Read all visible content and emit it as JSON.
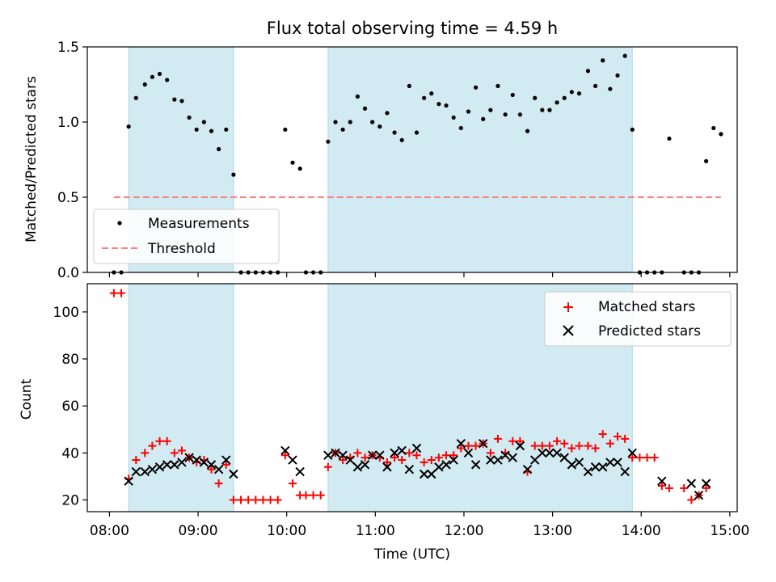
{
  "chart_data": [
    {
      "type": "scatter",
      "title": "Flux total observing time = 4.59 h",
      "xlabel": "",
      "ylabel": "Matched/Predicted stars",
      "xlim": [
        "07:45",
        "15:05"
      ],
      "ylim": [
        0,
        1.5
      ],
      "yticks": [
        "0.0",
        "0.5",
        "1.0",
        "1.5"
      ],
      "shaded_intervals": [
        [
          "08:13",
          "09:24"
        ],
        [
          "10:28",
          "13:54"
        ]
      ],
      "shade_color": "#add8e6",
      "legend_position": "lower-left",
      "series": [
        {
          "name": "Measurements",
          "marker": "dot",
          "color": "#000000",
          "points": [
            [
              "08:03",
              0
            ],
            [
              "08:08",
              0
            ],
            [
              "08:13",
              0.97
            ],
            [
              "08:18",
              1.16
            ],
            [
              "08:24",
              1.25
            ],
            [
              "08:29",
              1.3
            ],
            [
              "08:34",
              1.32
            ],
            [
              "08:39",
              1.28
            ],
            [
              "08:44",
              1.15
            ],
            [
              "08:49",
              1.14
            ],
            [
              "08:54",
              1.03
            ],
            [
              "08:59",
              0.95
            ],
            [
              "09:04",
              1.0
            ],
            [
              "09:09",
              0.94
            ],
            [
              "09:14",
              0.82
            ],
            [
              "09:19",
              0.95
            ],
            [
              "09:24",
              0.65
            ],
            [
              "09:29",
              0
            ],
            [
              "09:34",
              0
            ],
            [
              "09:39",
              0
            ],
            [
              "09:44",
              0
            ],
            [
              "09:49",
              0
            ],
            [
              "09:54",
              0
            ],
            [
              "09:59",
              0.95
            ],
            [
              "10:04",
              0.73
            ],
            [
              "10:09",
              0.69
            ],
            [
              "10:13",
              0
            ],
            [
              "10:18",
              0
            ],
            [
              "10:23",
              0
            ],
            [
              "10:28",
              0.87
            ],
            [
              "10:33",
              1.0
            ],
            [
              "10:38",
              0.95
            ],
            [
              "10:43",
              1.0
            ],
            [
              "10:48",
              1.17
            ],
            [
              "10:53",
              1.09
            ],
            [
              "10:58",
              1.0
            ],
            [
              "11:03",
              0.97
            ],
            [
              "11:08",
              1.06
            ],
            [
              "11:13",
              0.93
            ],
            [
              "11:18",
              0.88
            ],
            [
              "11:23",
              1.24
            ],
            [
              "11:28",
              0.93
            ],
            [
              "11:33",
              1.16
            ],
            [
              "11:38",
              1.19
            ],
            [
              "11:43",
              1.12
            ],
            [
              "11:48",
              1.11
            ],
            [
              "11:53",
              1.03
            ],
            [
              "11:58",
              0.96
            ],
            [
              "12:03",
              1.07
            ],
            [
              "12:08",
              1.23
            ],
            [
              "12:13",
              1.02
            ],
            [
              "12:18",
              1.08
            ],
            [
              "12:23",
              1.24
            ],
            [
              "12:28",
              1.05
            ],
            [
              "12:33",
              1.18
            ],
            [
              "12:38",
              1.05
            ],
            [
              "12:43",
              0.94
            ],
            [
              "12:48",
              1.16
            ],
            [
              "12:53",
              1.08
            ],
            [
              "12:58",
              1.08
            ],
            [
              "13:03",
              1.13
            ],
            [
              "13:08",
              1.16
            ],
            [
              "13:13",
              1.2
            ],
            [
              "13:18",
              1.19
            ],
            [
              "13:24",
              1.34
            ],
            [
              "13:29",
              1.24
            ],
            [
              "13:34",
              1.41
            ],
            [
              "13:39",
              1.22
            ],
            [
              "13:44",
              1.31
            ],
            [
              "13:49",
              1.44
            ],
            [
              "13:54",
              0.95
            ],
            [
              "13:59",
              0
            ],
            [
              "14:04",
              0
            ],
            [
              "14:09",
              0
            ],
            [
              "14:14",
              0
            ],
            [
              "14:19",
              0.89
            ],
            [
              "14:29",
              0
            ],
            [
              "14:34",
              0
            ],
            [
              "14:39",
              0
            ],
            [
              "14:44",
              0.74
            ],
            [
              "14:49",
              0.96
            ],
            [
              "14:54",
              0.92
            ]
          ]
        },
        {
          "name": "Threshold",
          "line": "dashed",
          "color": "#ff7f7f",
          "points": [
            [
              "08:03",
              0.5
            ],
            [
              "14:54",
              0.5
            ]
          ]
        }
      ]
    },
    {
      "type": "scatter",
      "title": "",
      "xlabel": "Time (UTC)",
      "ylabel": "Count",
      "xlim": [
        "07:45",
        "15:05"
      ],
      "ylim": [
        15,
        112
      ],
      "xticks": [
        "08:00",
        "09:00",
        "10:00",
        "11:00",
        "12:00",
        "13:00",
        "14:00",
        "15:00"
      ],
      "yticks": [
        "20",
        "40",
        "60",
        "80",
        "100"
      ],
      "shaded_intervals": [
        [
          "08:13",
          "09:24"
        ],
        [
          "10:28",
          "13:54"
        ]
      ],
      "shade_color": "#add8e6",
      "legend_position": "upper-right",
      "series": [
        {
          "name": "Matched stars",
          "marker": "plus",
          "color": "#ff0000",
          "points": [
            [
              "08:03",
              108
            ],
            [
              "08:08",
              108
            ],
            [
              "08:13",
              29
            ],
            [
              "08:18",
              37
            ],
            [
              "08:24",
              40
            ],
            [
              "08:29",
              43
            ],
            [
              "08:34",
              45
            ],
            [
              "08:39",
              45
            ],
            [
              "08:44",
              40
            ],
            [
              "08:49",
              41
            ],
            [
              "08:54",
              38
            ],
            [
              "08:59",
              36
            ],
            [
              "09:04",
              37
            ],
            [
              "09:09",
              33
            ],
            [
              "09:14",
              27
            ],
            [
              "09:19",
              35
            ],
            [
              "09:24",
              20
            ],
            [
              "09:29",
              20
            ],
            [
              "09:34",
              20
            ],
            [
              "09:39",
              20
            ],
            [
              "09:44",
              20
            ],
            [
              "09:49",
              20
            ],
            [
              "09:54",
              20
            ],
            [
              "09:59",
              39
            ],
            [
              "10:04",
              27
            ],
            [
              "10:09",
              22
            ],
            [
              "10:13",
              22
            ],
            [
              "10:18",
              22
            ],
            [
              "10:23",
              22
            ],
            [
              "10:28",
              34
            ],
            [
              "10:33",
              40
            ],
            [
              "10:38",
              37
            ],
            [
              "10:43",
              38
            ],
            [
              "10:48",
              40
            ],
            [
              "10:53",
              38
            ],
            [
              "10:58",
              39
            ],
            [
              "11:03",
              38
            ],
            [
              "11:08",
              36
            ],
            [
              "11:13",
              38
            ],
            [
              "11:18",
              37
            ],
            [
              "11:23",
              40
            ],
            [
              "11:28",
              39
            ],
            [
              "11:33",
              36
            ],
            [
              "11:38",
              37
            ],
            [
              "11:43",
              38
            ],
            [
              "11:48",
              39
            ],
            [
              "11:53",
              39
            ],
            [
              "11:58",
              42
            ],
            [
              "12:03",
              43
            ],
            [
              "12:08",
              43
            ],
            [
              "12:13",
              44
            ],
            [
              "12:18",
              40
            ],
            [
              "12:23",
              46
            ],
            [
              "12:28",
              40
            ],
            [
              "12:33",
              45
            ],
            [
              "12:38",
              45
            ],
            [
              "12:43",
              32
            ],
            [
              "12:48",
              43
            ],
            [
              "12:53",
              43
            ],
            [
              "12:58",
              43
            ],
            [
              "13:03",
              45
            ],
            [
              "13:08",
              44
            ],
            [
              "13:13",
              42
            ],
            [
              "13:18",
              43
            ],
            [
              "13:24",
              43
            ],
            [
              "13:29",
              42
            ],
            [
              "13:34",
              48
            ],
            [
              "13:39",
              44
            ],
            [
              "13:44",
              47
            ],
            [
              "13:49",
              46
            ],
            [
              "13:54",
              38
            ],
            [
              "13:59",
              38
            ],
            [
              "14:04",
              38
            ],
            [
              "14:09",
              38
            ],
            [
              "14:14",
              26
            ],
            [
              "14:19",
              25
            ],
            [
              "14:29",
              25
            ],
            [
              "14:34",
              20
            ],
            [
              "14:39",
              22
            ],
            [
              "14:44",
              25
            ]
          ]
        },
        {
          "name": "Predicted stars",
          "marker": "x",
          "color": "#000000",
          "points": [
            [
              "08:13",
              28
            ],
            [
              "08:18",
              32
            ],
            [
              "08:24",
              32
            ],
            [
              "08:29",
              33
            ],
            [
              "08:34",
              34
            ],
            [
              "08:39",
              35
            ],
            [
              "08:44",
              35
            ],
            [
              "08:49",
              36
            ],
            [
              "08:54",
              38
            ],
            [
              "08:59",
              37
            ],
            [
              "09:04",
              36
            ],
            [
              "09:09",
              35
            ],
            [
              "09:14",
              33
            ],
            [
              "09:19",
              37
            ],
            [
              "09:24",
              31
            ],
            [
              "09:59",
              41
            ],
            [
              "10:04",
              37
            ],
            [
              "10:09",
              32
            ],
            [
              "10:28",
              39
            ],
            [
              "10:33",
              40
            ],
            [
              "10:38",
              39
            ],
            [
              "10:43",
              37
            ],
            [
              "10:48",
              34
            ],
            [
              "10:53",
              35
            ],
            [
              "10:58",
              39
            ],
            [
              "11:03",
              39
            ],
            [
              "11:08",
              34
            ],
            [
              "11:13",
              40
            ],
            [
              "11:18",
              41
            ],
            [
              "11:23",
              33
            ],
            [
              "11:28",
              42
            ],
            [
              "11:33",
              31
            ],
            [
              "11:38",
              31
            ],
            [
              "11:43",
              34
            ],
            [
              "11:48",
              35
            ],
            [
              "11:53",
              37
            ],
            [
              "11:58",
              44
            ],
            [
              "12:03",
              40
            ],
            [
              "12:08",
              35
            ],
            [
              "12:13",
              44
            ],
            [
              "12:18",
              37
            ],
            [
              "12:23",
              37
            ],
            [
              "12:28",
              39
            ],
            [
              "12:33",
              38
            ],
            [
              "12:38",
              43
            ],
            [
              "12:43",
              33
            ],
            [
              "12:48",
              37
            ],
            [
              "12:53",
              40
            ],
            [
              "12:58",
              40
            ],
            [
              "13:03",
              40
            ],
            [
              "13:08",
              38
            ],
            [
              "13:13",
              35
            ],
            [
              "13:18",
              36
            ],
            [
              "13:24",
              32
            ],
            [
              "13:29",
              34
            ],
            [
              "13:34",
              34
            ],
            [
              "13:39",
              36
            ],
            [
              "13:44",
              36
            ],
            [
              "13:49",
              32
            ],
            [
              "13:54",
              40
            ],
            [
              "14:14",
              28
            ],
            [
              "14:34",
              27
            ],
            [
              "14:39",
              22
            ],
            [
              "14:44",
              27
            ]
          ]
        }
      ]
    }
  ]
}
